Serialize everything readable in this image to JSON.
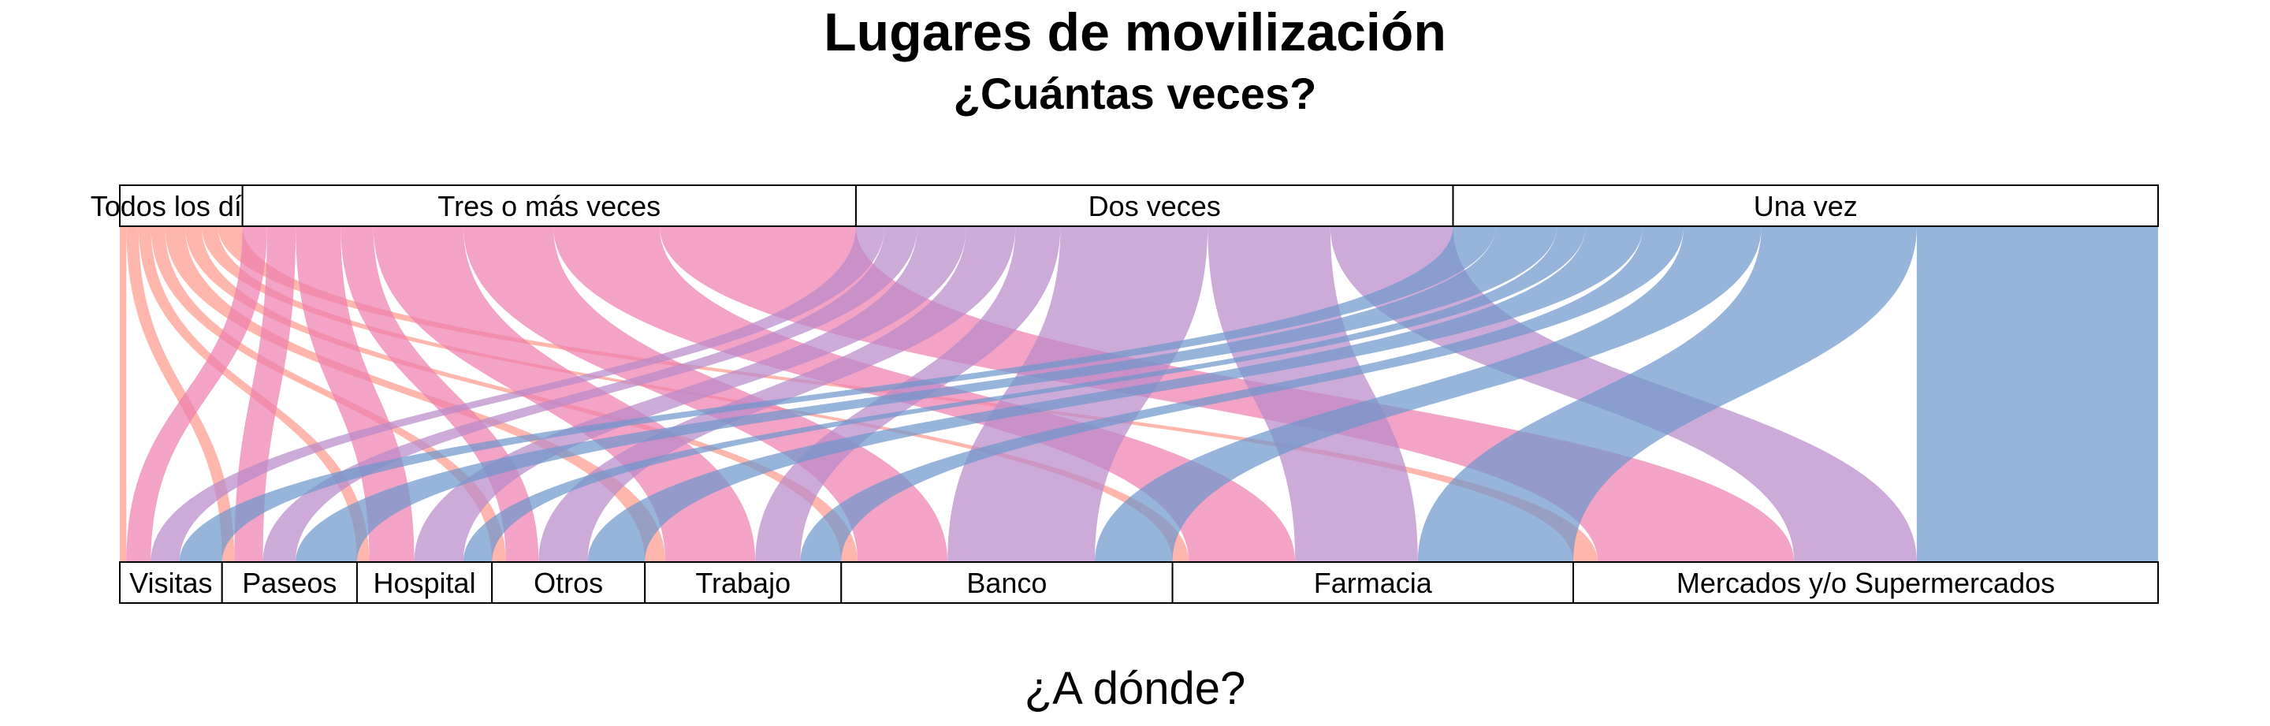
{
  "chart_data": {
    "type": "alluvial",
    "title": "Lugares de movilización",
    "subtitle": "¿Cuántas veces?",
    "xlabel": "¿A dónde?",
    "top_axis": [
      "Todos los días",
      "Tres o más veces",
      "Dos veces",
      "Una vez"
    ],
    "bottom_axis": [
      "Visitas",
      "Paseos",
      "Hospital",
      "Otros",
      "Trabajo",
      "Banco",
      "Farmacia",
      "Mercados y/o Supermercados"
    ],
    "colors": {
      "Todos los días": "#ff9a8e",
      "Tres o más veces": "#ef7fae",
      "Dos veces": "#b88ac9",
      "Una vez": "#6f97cc"
    },
    "flows": [
      {
        "from": "Todos los días",
        "to": "Visitas",
        "value": 8
      },
      {
        "from": "Todos los días",
        "to": "Paseos",
        "value": 15
      },
      {
        "from": "Todos los días",
        "to": "Hospital",
        "value": 15
      },
      {
        "from": "Todos los días",
        "to": "Otros",
        "value": 17
      },
      {
        "from": "Todos los días",
        "to": "Trabajo",
        "value": 25
      },
      {
        "from": "Todos los días",
        "to": "Banco",
        "value": 20
      },
      {
        "from": "Todos los días",
        "to": "Farmacia",
        "value": 20
      },
      {
        "from": "Todos los días",
        "to": "Mercados y/o Supermercados",
        "value": 30
      },
      {
        "from": "Tres o más veces",
        "to": "Visitas",
        "value": 30
      },
      {
        "from": "Tres o más veces",
        "to": "Paseos",
        "value": 35
      },
      {
        "from": "Tres o más veces",
        "to": "Hospital",
        "value": 55
      },
      {
        "from": "Tres o más veces",
        "to": "Otros",
        "value": 40
      },
      {
        "from": "Tres o más veces",
        "to": "Trabajo",
        "value": 110
      },
      {
        "from": "Tres o más veces",
        "to": "Banco",
        "value": 110
      },
      {
        "from": "Tres o más veces",
        "to": "Farmacia",
        "value": 130
      },
      {
        "from": "Tres o más veces",
        "to": "Mercados y/o Supermercados",
        "value": 240
      },
      {
        "from": "Dos veces",
        "to": "Visitas",
        "value": 35
      },
      {
        "from": "Dos veces",
        "to": "Paseos",
        "value": 40
      },
      {
        "from": "Dos veces",
        "to": "Hospital",
        "value": 60
      },
      {
        "from": "Dos veces",
        "to": "Otros",
        "value": 60
      },
      {
        "from": "Dos veces",
        "to": "Trabajo",
        "value": 55
      },
      {
        "from": "Dos veces",
        "to": "Banco",
        "value": 180
      },
      {
        "from": "Dos veces",
        "to": "Farmacia",
        "value": 150
      },
      {
        "from": "Dos veces",
        "to": "Mercados y/o Supermercados",
        "value": 150
      },
      {
        "from": "Una vez",
        "to": "Visitas",
        "value": 52
      },
      {
        "from": "Una vez",
        "to": "Paseos",
        "value": 75
      },
      {
        "from": "Una vez",
        "to": "Hospital",
        "value": 35
      },
      {
        "from": "Una vez",
        "to": "Otros",
        "value": 70
      },
      {
        "from": "Una vez",
        "to": "Trabajo",
        "value": 50
      },
      {
        "from": "Una vez",
        "to": "Banco",
        "value": 95
      },
      {
        "from": "Una vez",
        "to": "Farmacia",
        "value": 190
      },
      {
        "from": "Una vez",
        "to": "Mercados y/o Supermercados",
        "value": 295
      }
    ]
  }
}
